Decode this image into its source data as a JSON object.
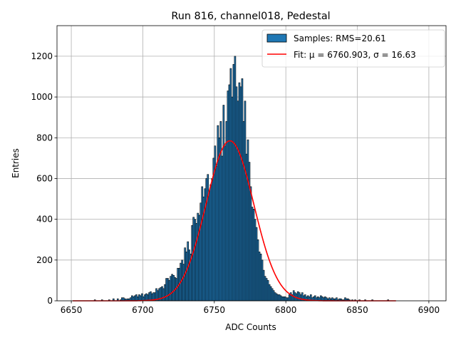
{
  "chart_data": {
    "type": "bar",
    "title": "Run 816, channel018, Pedestal",
    "xlabel": "ADC Counts",
    "ylabel": "Entries",
    "xlim": [
      6640,
      6912
    ],
    "ylim": [
      0,
      1350
    ],
    "xticks": [
      6650,
      6700,
      6750,
      6800,
      6850,
      6900
    ],
    "yticks": [
      0,
      200,
      400,
      600,
      800,
      1000,
      1200
    ],
    "grid": true,
    "legend_position": "top-right",
    "colors": {
      "bar_fill": "#1f77b4",
      "bar_edge": "#000000",
      "fit_line": "#ff0000"
    },
    "histogram": {
      "name": "Samples: RMS=20.61",
      "bin_width": 1,
      "bins": [
        [
          6666,
          5
        ],
        [
          6671,
          5
        ],
        [
          6676,
          5
        ],
        [
          6679,
          10
        ],
        [
          6682,
          10
        ],
        [
          6684,
          5
        ],
        [
          6685,
          15
        ],
        [
          6686,
          15
        ],
        [
          6687,
          10
        ],
        [
          6688,
          8
        ],
        [
          6689,
          10
        ],
        [
          6690,
          10
        ],
        [
          6691,
          15
        ],
        [
          6692,
          25
        ],
        [
          6693,
          20
        ],
        [
          6694,
          25
        ],
        [
          6695,
          30
        ],
        [
          6696,
          20
        ],
        [
          6697,
          30
        ],
        [
          6698,
          25
        ],
        [
          6699,
          35
        ],
        [
          6700,
          20
        ],
        [
          6701,
          30
        ],
        [
          6702,
          35
        ],
        [
          6703,
          30
        ],
        [
          6704,
          40
        ],
        [
          6705,
          45
        ],
        [
          6706,
          35
        ],
        [
          6707,
          40
        ],
        [
          6708,
          40
        ],
        [
          6709,
          60
        ],
        [
          6710,
          50
        ],
        [
          6711,
          60
        ],
        [
          6712,
          65
        ],
        [
          6713,
          70
        ],
        [
          6714,
          60
        ],
        [
          6715,
          80
        ],
        [
          6716,
          110
        ],
        [
          6717,
          110
        ],
        [
          6718,
          100
        ],
        [
          6719,
          120
        ],
        [
          6720,
          130
        ],
        [
          6721,
          125
        ],
        [
          6722,
          115
        ],
        [
          6723,
          110
        ],
        [
          6724,
          160
        ],
        [
          6725,
          160
        ],
        [
          6726,
          185
        ],
        [
          6727,
          200
        ],
        [
          6728,
          180
        ],
        [
          6729,
          260
        ],
        [
          6730,
          240
        ],
        [
          6731,
          290
        ],
        [
          6732,
          250
        ],
        [
          6733,
          230
        ],
        [
          6734,
          370
        ],
        [
          6735,
          410
        ],
        [
          6736,
          400
        ],
        [
          6737,
          380
        ],
        [
          6738,
          430
        ],
        [
          6739,
          420
        ],
        [
          6740,
          480
        ],
        [
          6741,
          560
        ],
        [
          6742,
          510
        ],
        [
          6743,
          550
        ],
        [
          6744,
          600
        ],
        [
          6745,
          620
        ],
        [
          6746,
          540
        ],
        [
          6747,
          570
        ],
        [
          6748,
          600
        ],
        [
          6749,
          700
        ],
        [
          6750,
          760
        ],
        [
          6751,
          660
        ],
        [
          6752,
          860
        ],
        [
          6753,
          800
        ],
        [
          6754,
          880
        ],
        [
          6755,
          710
        ],
        [
          6756,
          960
        ],
        [
          6757,
          760
        ],
        [
          6758,
          880
        ],
        [
          6759,
          1030
        ],
        [
          6760,
          1060
        ],
        [
          6761,
          1140
        ],
        [
          6762,
          1000
        ],
        [
          6763,
          1160
        ],
        [
          6764,
          1200
        ],
        [
          6765,
          1050
        ],
        [
          6766,
          980
        ],
        [
          6767,
          1070
        ],
        [
          6768,
          1050
        ],
        [
          6769,
          1090
        ],
        [
          6770,
          880
        ],
        [
          6771,
          980
        ],
        [
          6772,
          720
        ],
        [
          6773,
          790
        ],
        [
          6774,
          680
        ],
        [
          6775,
          560
        ],
        [
          6776,
          460
        ],
        [
          6777,
          450
        ],
        [
          6778,
          400
        ],
        [
          6779,
          360
        ],
        [
          6780,
          300
        ],
        [
          6781,
          240
        ],
        [
          6782,
          230
        ],
        [
          6783,
          200
        ],
        [
          6784,
          150
        ],
        [
          6785,
          120
        ],
        [
          6786,
          110
        ],
        [
          6787,
          100
        ],
        [
          6788,
          80
        ],
        [
          6789,
          70
        ],
        [
          6790,
          60
        ],
        [
          6791,
          50
        ],
        [
          6792,
          40
        ],
        [
          6793,
          35
        ],
        [
          6794,
          30
        ],
        [
          6795,
          30
        ],
        [
          6796,
          25
        ],
        [
          6797,
          20
        ],
        [
          6798,
          20
        ],
        [
          6799,
          20
        ],
        [
          6800,
          15
        ],
        [
          6801,
          15
        ],
        [
          6802,
          30
        ],
        [
          6803,
          40
        ],
        [
          6804,
          30
        ],
        [
          6805,
          50
        ],
        [
          6806,
          40
        ],
        [
          6807,
          35
        ],
        [
          6808,
          45
        ],
        [
          6809,
          40
        ],
        [
          6810,
          30
        ],
        [
          6811,
          40
        ],
        [
          6812,
          25
        ],
        [
          6813,
          30
        ],
        [
          6814,
          20
        ],
        [
          6815,
          25
        ],
        [
          6816,
          20
        ],
        [
          6817,
          30
        ],
        [
          6818,
          15
        ],
        [
          6819,
          20
        ],
        [
          6820,
          25
        ],
        [
          6821,
          15
        ],
        [
          6822,
          20
        ],
        [
          6823,
          15
        ],
        [
          6824,
          25
        ],
        [
          6825,
          20
        ],
        [
          6826,
          15
        ],
        [
          6827,
          20
        ],
        [
          6828,
          15
        ],
        [
          6829,
          10
        ],
        [
          6830,
          15
        ],
        [
          6831,
          10
        ],
        [
          6832,
          15
        ],
        [
          6833,
          10
        ],
        [
          6834,
          10
        ],
        [
          6835,
          15
        ],
        [
          6836,
          5
        ],
        [
          6837,
          10
        ],
        [
          6838,
          10
        ],
        [
          6839,
          5
        ],
        [
          6840,
          5
        ],
        [
          6841,
          15
        ],
        [
          6842,
          10
        ],
        [
          6843,
          10
        ],
        [
          6844,
          5
        ],
        [
          6846,
          5
        ],
        [
          6848,
          5
        ],
        [
          6851,
          5
        ],
        [
          6855,
          5
        ],
        [
          6860,
          5
        ],
        [
          6871,
          5
        ]
      ]
    },
    "fit": {
      "name": "Fit: μ = 6760.903, σ = 16.63",
      "mu": 6760.903,
      "sigma": 16.63,
      "amplitude": 785,
      "x_range": [
        6651,
        6877
      ]
    }
  }
}
